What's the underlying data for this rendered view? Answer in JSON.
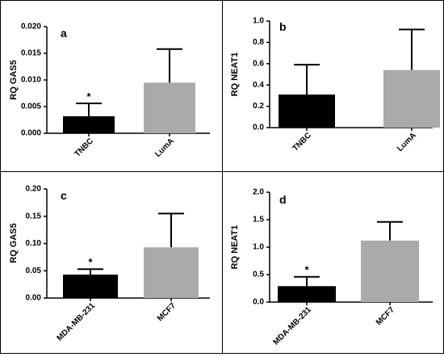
{
  "figure": {
    "colors": {
      "dark": "#000000",
      "light": "#aaaaaa",
      "frame": "#000000"
    }
  },
  "chart_data": [
    {
      "type": "bar",
      "panel_label": "a",
      "ylabel": "RQ GAS5",
      "categories": [
        "TNBC",
        "LumA"
      ],
      "values": [
        0.0032,
        0.0095
      ],
      "errors": [
        0.0024,
        0.0063
      ],
      "significance": [
        "*",
        ""
      ],
      "ylim": [
        0,
        0.02
      ],
      "yticks": [
        0,
        0.005,
        0.01,
        0.015,
        0.02
      ],
      "ytick_labels": [
        "0.000",
        "0.005",
        "0.010",
        "0.015",
        "0.020"
      ]
    },
    {
      "type": "bar",
      "panel_label": "b",
      "ylabel": "RQ NEAT1",
      "categories": [
        "TNBC",
        "LumA"
      ],
      "values": [
        0.31,
        0.54
      ],
      "errors": [
        0.28,
        0.38
      ],
      "significance": [
        "",
        ""
      ],
      "ylim": [
        0,
        1.0
      ],
      "yticks": [
        0,
        0.2,
        0.4,
        0.6,
        0.8,
        1.0
      ],
      "ytick_labels": [
        "0.0",
        "0.2",
        "0.4",
        "0.6",
        "0.8",
        "1.0"
      ]
    },
    {
      "type": "bar",
      "panel_label": "c",
      "ylabel": "RQ GAS5",
      "categories": [
        "MDA-MB-231",
        "MCF7"
      ],
      "values": [
        0.043,
        0.093
      ],
      "errors": [
        0.01,
        0.062
      ],
      "significance": [
        "*",
        ""
      ],
      "ylim": [
        0,
        0.2
      ],
      "yticks": [
        0,
        0.05,
        0.1,
        0.15,
        0.2
      ],
      "ytick_labels": [
        "0.00",
        "0.05",
        "0.10",
        "0.15",
        "0.20"
      ]
    },
    {
      "type": "bar",
      "panel_label": "d",
      "ylabel": "RQ NEAT1",
      "categories": [
        "MDA-MB-231",
        "MCF7"
      ],
      "values": [
        0.29,
        1.12
      ],
      "errors": [
        0.17,
        0.34
      ],
      "significance": [
        "*",
        ""
      ],
      "ylim": [
        0,
        2.0
      ],
      "yticks": [
        0,
        0.5,
        1.0,
        1.5,
        2.0
      ],
      "ytick_labels": [
        "0.0",
        "0.5",
        "1.0",
        "1.5",
        "2.0"
      ]
    }
  ]
}
